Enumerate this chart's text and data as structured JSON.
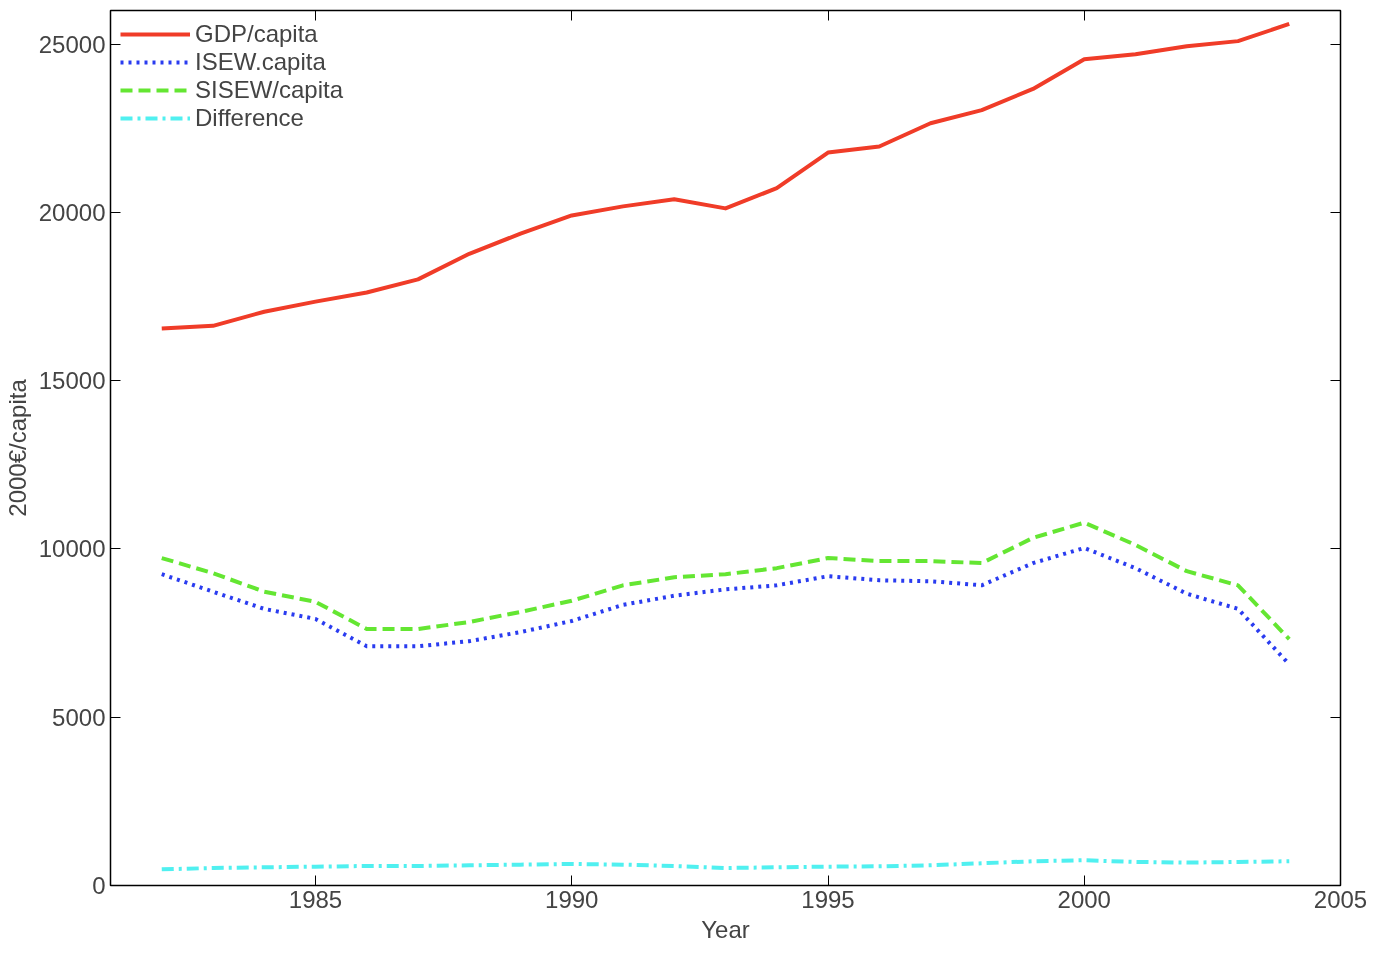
{
  "chart_data": {
    "type": "line",
    "xlabel": "Year",
    "ylabel": "2000€/capita",
    "xlim": [
      1981,
      2005
    ],
    "ylim": [
      0,
      26000
    ],
    "xticks": [
      1985,
      1990,
      1995,
      2000,
      2005
    ],
    "yticks": [
      0,
      5000,
      10000,
      15000,
      20000,
      25000
    ],
    "grid": false,
    "legend": "top left",
    "x": [
      1982,
      1983,
      1984,
      1985,
      1986,
      1987,
      1988,
      1989,
      1990,
      1991,
      1992,
      1993,
      1994,
      1995,
      1996,
      1997,
      1998,
      1999,
      2000,
      2001,
      2002,
      2003,
      2004
    ],
    "series": [
      {
        "name": "GDP/capita",
        "color": "#f03c28",
        "line_style": "solid",
        "values": [
          16550,
          16630,
          17050,
          17350,
          17620,
          18010,
          18770,
          19370,
          19910,
          20180,
          20390,
          20120,
          20720,
          21780,
          21960,
          22650,
          23040,
          23670,
          24550,
          24700,
          24940,
          25090,
          25600
        ]
      },
      {
        "name": "ISEW.capita",
        "color": "#2a3cf0",
        "line_style": "dotted",
        "values": [
          9250,
          8730,
          8220,
          7920,
          7110,
          7110,
          7260,
          7530,
          7860,
          8340,
          8610,
          8800,
          8920,
          9190,
          9070,
          9040,
          8920,
          9580,
          10030,
          9430,
          8670,
          8220,
          6570
        ]
      },
      {
        "name": "SISEW/capita",
        "color": "#64e632",
        "line_style": "dashed",
        "values": [
          9730,
          9280,
          8730,
          8430,
          7620,
          7620,
          7830,
          8130,
          8460,
          8920,
          9160,
          9250,
          9430,
          9730,
          9640,
          9640,
          9580,
          10330,
          10780,
          10120,
          9340,
          8920,
          7320
        ]
      },
      {
        "name": "Difference",
        "color": "#50f0f0",
        "line_style": "dashdot",
        "values": [
          480,
          520,
          540,
          560,
          580,
          580,
          600,
          620,
          640,
          620,
          580,
          520,
          540,
          560,
          570,
          600,
          660,
          720,
          750,
          700,
          680,
          700,
          720
        ]
      }
    ]
  }
}
